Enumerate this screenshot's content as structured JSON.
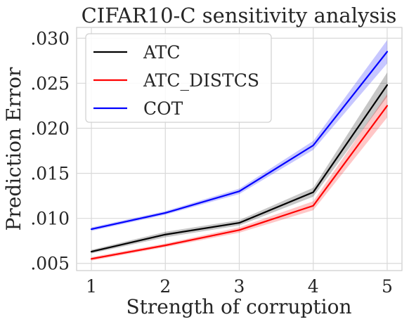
{
  "chart_data": {
    "type": "line",
    "title": "CIFAR10-C sensitivity analysis",
    "xlabel": "Strength of corruption",
    "ylabel": "Prediction Error",
    "x": [
      1,
      2,
      3,
      4,
      5
    ],
    "x_tick_labels": [
      "1",
      "2",
      "3",
      "4",
      "5"
    ],
    "xlim": [
      0.8,
      5.2
    ],
    "y_ticks": [
      0.005,
      0.01,
      0.015,
      0.02,
      0.025,
      0.03
    ],
    "y_tick_labels": [
      ".005",
      ".010",
      ".015",
      ".020",
      ".025",
      ".030"
    ],
    "ylim": [
      0.0042,
      0.0312
    ],
    "grid": true,
    "legend_position": "top-left",
    "series": [
      {
        "name": "ATC",
        "color": "#000000",
        "values": [
          0.0063,
          0.0082,
          0.0095,
          0.0129,
          0.0248
        ],
        "lower": [
          0.0061,
          0.0079,
          0.0092,
          0.0124,
          0.0235
        ],
        "upper": [
          0.0065,
          0.0085,
          0.0098,
          0.0134,
          0.0262
        ]
      },
      {
        "name": "ATC_DISTCS",
        "color": "#ff0000",
        "values": [
          0.0055,
          0.007,
          0.0087,
          0.0114,
          0.0225
        ],
        "lower": [
          0.0053,
          0.0068,
          0.0084,
          0.0109,
          0.0212
        ],
        "upper": [
          0.0057,
          0.0072,
          0.009,
          0.0119,
          0.0238
        ]
      },
      {
        "name": "COT",
        "color": "#0000ff",
        "values": [
          0.0088,
          0.0106,
          0.013,
          0.0181,
          0.0285
        ],
        "lower": [
          0.0086,
          0.0104,
          0.0127,
          0.0176,
          0.0272
        ],
        "upper": [
          0.009,
          0.0108,
          0.0133,
          0.0186,
          0.0298
        ]
      }
    ]
  }
}
